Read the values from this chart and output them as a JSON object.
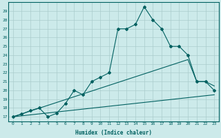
{
  "xlabel": "Humidex (Indice chaleur)",
  "bg_color": "#cceaea",
  "grid_color": "#aacccc",
  "line_color": "#006060",
  "x_min": -0.5,
  "x_max": 23.5,
  "y_min": 16.5,
  "y_max": 30.0,
  "curve1_x": [
    0,
    1,
    2,
    3,
    4,
    5,
    6,
    7,
    8,
    9,
    10,
    11,
    12,
    13,
    14,
    15,
    16,
    17,
    18,
    19,
    20,
    21,
    22,
    23
  ],
  "curve1_y": [
    17.0,
    17.3,
    17.7,
    18.0,
    17.0,
    17.4,
    18.5,
    20.0,
    19.5,
    21.0,
    21.5,
    22.0,
    27.0,
    27.0,
    27.5,
    29.5,
    28.0,
    27.0,
    25.0,
    25.0,
    24.0,
    21.0,
    21.0,
    20.0
  ],
  "curve2_x": [
    0,
    20,
    21,
    22,
    23
  ],
  "curve2_y": [
    17.0,
    23.5,
    21.0,
    21.0,
    20.5
  ],
  "curve3_x": [
    0,
    23
  ],
  "curve3_y": [
    17.0,
    19.5
  ],
  "yticks": [
    17,
    18,
    19,
    20,
    21,
    22,
    23,
    24,
    25,
    26,
    27,
    28,
    29
  ],
  "xticks": [
    0,
    1,
    2,
    3,
    4,
    5,
    6,
    7,
    8,
    9,
    10,
    11,
    12,
    13,
    14,
    15,
    16,
    17,
    18,
    19,
    20,
    21,
    22,
    23
  ],
  "xlabel_fontsize": 5.5,
  "tick_fontsize": 4.5
}
